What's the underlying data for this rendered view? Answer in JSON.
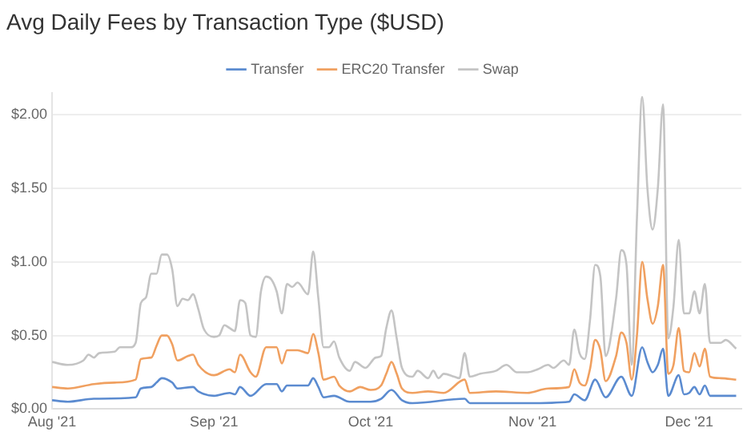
{
  "chart_data": {
    "type": "line",
    "title": "Avg Daily Fees by Transaction Type ($USD)",
    "legend": "top",
    "grid": "y",
    "marker": "none",
    "line_style": "solid",
    "xlim": [
      "2021-08-01",
      "2021-12-11"
    ],
    "xticks": [
      {
        "value": "2021-08-01",
        "label": "Aug '21"
      },
      {
        "value": "2021-09-01",
        "label": "Sep '21"
      },
      {
        "value": "2021-10-01",
        "label": "Oct '21"
      },
      {
        "value": "2021-11-01",
        "label": "Nov '21"
      },
      {
        "value": "2021-12-01",
        "label": "Dec '21"
      }
    ],
    "ylim": [
      0,
      2.15
    ],
    "yticks": [
      {
        "value": 0,
        "label": "$0.00"
      },
      {
        "value": 0.5,
        "label": "$0.50"
      },
      {
        "value": 1,
        "label": "$1.00"
      },
      {
        "value": 1.5,
        "label": "$1.50"
      },
      {
        "value": 2,
        "label": "$2.00"
      }
    ],
    "series": [
      {
        "name": "Transfer",
        "color": "#5b8bd0",
        "x": [
          "2021-08-01",
          "2021-08-04",
          "2021-08-09",
          "2021-08-17",
          "2021-08-18",
          "2021-08-20",
          "2021-08-21",
          "2021-08-22",
          "2021-08-24",
          "2021-08-25",
          "2021-08-28",
          "2021-08-29",
          "2021-09-01",
          "2021-09-04",
          "2021-09-05",
          "2021-09-06",
          "2021-09-08",
          "2021-09-11",
          "2021-09-13",
          "2021-09-14",
          "2021-09-15",
          "2021-09-19",
          "2021-09-20",
          "2021-09-21",
          "2021-09-22",
          "2021-09-24",
          "2021-09-27",
          "2021-10-01",
          "2021-10-03",
          "2021-10-05",
          "2021-10-07",
          "2021-10-09",
          "2021-10-19",
          "2021-10-20",
          "2021-10-31",
          "2021-11-08",
          "2021-11-09",
          "2021-11-11",
          "2021-11-13",
          "2021-11-15",
          "2021-11-18",
          "2021-11-20",
          "2021-11-22",
          "2021-11-23",
          "2021-11-24",
          "2021-11-25",
          "2021-11-26",
          "2021-11-27",
          "2021-11-29",
          "2021-11-30",
          "2021-12-01",
          "2021-12-02",
          "2021-12-03",
          "2021-12-04",
          "2021-12-05",
          "2021-12-10"
        ],
        "values": [
          0.06,
          0.05,
          0.07,
          0.08,
          0.14,
          0.15,
          0.18,
          0.21,
          0.18,
          0.14,
          0.15,
          0.12,
          0.09,
          0.11,
          0.1,
          0.15,
          0.09,
          0.17,
          0.17,
          0.12,
          0.16,
          0.16,
          0.21,
          0.15,
          0.08,
          0.09,
          0.05,
          0.05,
          0.07,
          0.13,
          0.06,
          0.04,
          0.07,
          0.04,
          0.04,
          0.05,
          0.1,
          0.06,
          0.2,
          0.08,
          0.22,
          0.09,
          0.42,
          0.32,
          0.25,
          0.3,
          0.41,
          0.09,
          0.23,
          0.1,
          0.11,
          0.15,
          0.1,
          0.16,
          0.09,
          0.09
        ]
      },
      {
        "name": "ERC20 Transfer",
        "color": "#f0a060",
        "x": [
          "2021-08-01",
          "2021-08-04",
          "2021-08-09",
          "2021-08-13",
          "2021-08-17",
          "2021-08-18",
          "2021-08-20",
          "2021-08-21",
          "2021-08-22",
          "2021-08-23",
          "2021-08-24",
          "2021-08-25",
          "2021-08-27",
          "2021-08-28",
          "2021-08-29",
          "2021-09-01",
          "2021-09-04",
          "2021-09-05",
          "2021-09-06",
          "2021-09-08",
          "2021-09-09",
          "2021-09-11",
          "2021-09-13",
          "2021-09-14",
          "2021-09-15",
          "2021-09-17",
          "2021-09-19",
          "2021-09-20",
          "2021-09-21",
          "2021-09-22",
          "2021-09-24",
          "2021-09-25",
          "2021-09-27",
          "2021-09-29",
          "2021-10-01",
          "2021-10-03",
          "2021-10-04",
          "2021-10-05",
          "2021-10-06",
          "2021-10-07",
          "2021-10-09",
          "2021-10-12",
          "2021-10-15",
          "2021-10-19",
          "2021-10-20",
          "2021-10-25",
          "2021-10-31",
          "2021-11-04",
          "2021-11-08",
          "2021-11-09",
          "2021-11-10",
          "2021-11-11",
          "2021-11-12",
          "2021-11-13",
          "2021-11-14",
          "2021-11-15",
          "2021-11-17",
          "2021-11-18",
          "2021-11-19",
          "2021-11-20",
          "2021-11-21",
          "2021-11-22",
          "2021-11-23",
          "2021-11-24",
          "2021-11-25",
          "2021-11-26",
          "2021-11-27",
          "2021-11-28",
          "2021-11-29",
          "2021-11-30",
          "2021-12-01",
          "2021-12-02",
          "2021-12-03",
          "2021-12-04",
          "2021-12-05",
          "2021-12-07",
          "2021-12-10"
        ],
        "values": [
          0.15,
          0.14,
          0.17,
          0.18,
          0.2,
          0.34,
          0.35,
          0.43,
          0.5,
          0.5,
          0.44,
          0.33,
          0.36,
          0.37,
          0.3,
          0.23,
          0.27,
          0.25,
          0.37,
          0.25,
          0.22,
          0.42,
          0.42,
          0.31,
          0.4,
          0.4,
          0.38,
          0.51,
          0.38,
          0.2,
          0.22,
          0.16,
          0.12,
          0.15,
          0.13,
          0.16,
          0.24,
          0.32,
          0.24,
          0.14,
          0.11,
          0.12,
          0.11,
          0.2,
          0.11,
          0.12,
          0.11,
          0.14,
          0.15,
          0.27,
          0.18,
          0.16,
          0.27,
          0.47,
          0.4,
          0.19,
          0.36,
          0.52,
          0.45,
          0.2,
          0.5,
          1.0,
          0.75,
          0.58,
          0.7,
          0.98,
          0.24,
          0.3,
          0.55,
          0.26,
          0.25,
          0.38,
          0.29,
          0.41,
          0.22,
          0.21,
          0.2
        ]
      },
      {
        "name": "Swap",
        "color": "#c4c4c4",
        "x": [
          "2021-08-01",
          "2021-08-04",
          "2021-08-07",
          "2021-08-08",
          "2021-08-09",
          "2021-08-10",
          "2021-08-13",
          "2021-08-14",
          "2021-08-16",
          "2021-08-17",
          "2021-08-18",
          "2021-08-19",
          "2021-08-20",
          "2021-08-21",
          "2021-08-22",
          "2021-08-23",
          "2021-08-24",
          "2021-08-25",
          "2021-08-26",
          "2021-08-27",
          "2021-08-28",
          "2021-08-29",
          "2021-08-30",
          "2021-09-01",
          "2021-09-02",
          "2021-09-03",
          "2021-09-04",
          "2021-09-05",
          "2021-09-06",
          "2021-09-07",
          "2021-09-08",
          "2021-09-09",
          "2021-09-10",
          "2021-09-11",
          "2021-09-12",
          "2021-09-13",
          "2021-09-14",
          "2021-09-15",
          "2021-09-16",
          "2021-09-17",
          "2021-09-19",
          "2021-09-20",
          "2021-09-21",
          "2021-09-22",
          "2021-09-23",
          "2021-09-24",
          "2021-09-25",
          "2021-09-27",
          "2021-09-28",
          "2021-09-30",
          "2021-10-02",
          "2021-10-03",
          "2021-10-04",
          "2021-10-05",
          "2021-10-06",
          "2021-10-07",
          "2021-10-09",
          "2021-10-10",
          "2021-10-12",
          "2021-10-13",
          "2021-10-14",
          "2021-10-15",
          "2021-10-17",
          "2021-10-18",
          "2021-10-19",
          "2021-10-20",
          "2021-10-22",
          "2021-10-25",
          "2021-10-27",
          "2021-10-29",
          "2021-10-31",
          "2021-11-02",
          "2021-11-04",
          "2021-11-05",
          "2021-11-07",
          "2021-11-08",
          "2021-11-09",
          "2021-11-10",
          "2021-11-11",
          "2021-11-12",
          "2021-11-13",
          "2021-11-14",
          "2021-11-15",
          "2021-11-17",
          "2021-11-18",
          "2021-11-19",
          "2021-11-20",
          "2021-11-21",
          "2021-11-22",
          "2021-11-23",
          "2021-11-24",
          "2021-11-25",
          "2021-11-26",
          "2021-11-27",
          "2021-11-28",
          "2021-11-29",
          "2021-11-30",
          "2021-12-01",
          "2021-12-02",
          "2021-12-03",
          "2021-12-04",
          "2021-12-05",
          "2021-12-07",
          "2021-12-08",
          "2021-12-10"
        ],
        "values": [
          0.32,
          0.3,
          0.33,
          0.37,
          0.35,
          0.38,
          0.39,
          0.42,
          0.42,
          0.45,
          0.72,
          0.76,
          0.92,
          0.92,
          1.05,
          1.05,
          0.95,
          0.7,
          0.75,
          0.74,
          0.78,
          0.68,
          0.55,
          0.49,
          0.5,
          0.57,
          0.55,
          0.53,
          0.74,
          0.72,
          0.5,
          0.49,
          0.8,
          0.9,
          0.88,
          0.8,
          0.65,
          0.85,
          0.83,
          0.86,
          0.78,
          1.07,
          0.75,
          0.42,
          0.42,
          0.46,
          0.35,
          0.26,
          0.32,
          0.28,
          0.35,
          0.36,
          0.55,
          0.67,
          0.48,
          0.28,
          0.22,
          0.26,
          0.21,
          0.26,
          0.21,
          0.24,
          0.22,
          0.21,
          0.38,
          0.22,
          0.24,
          0.26,
          0.3,
          0.25,
          0.25,
          0.27,
          0.3,
          0.28,
          0.33,
          0.3,
          0.54,
          0.38,
          0.34,
          0.6,
          0.98,
          0.9,
          0.36,
          0.75,
          1.08,
          0.98,
          0.3,
          1.3,
          2.12,
          1.5,
          1.22,
          1.5,
          2.07,
          0.48,
          0.7,
          1.15,
          0.65,
          0.65,
          0.8,
          0.65,
          0.85,
          0.45,
          0.45,
          0.47,
          0.41
        ]
      }
    ]
  }
}
